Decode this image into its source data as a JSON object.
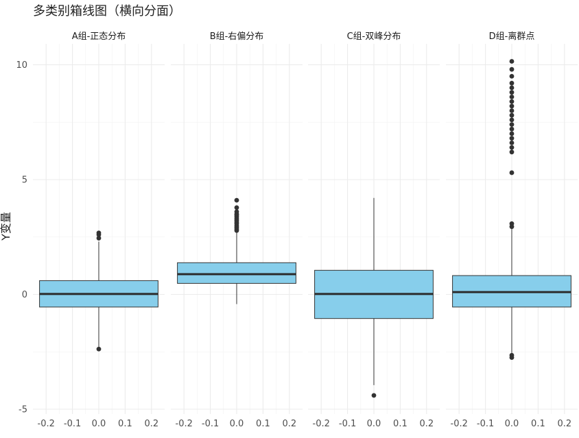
{
  "chart_data": {
    "type": "boxplot",
    "title": "多类别箱线图（横向分面）",
    "xlabel": "",
    "ylabel": "Y变量",
    "ylim": [
      -5.0,
      10.5
    ],
    "y_ticks": [
      10,
      5,
      0,
      -5
    ],
    "xlim": [
      -0.25,
      0.25
    ],
    "x_ticks": [
      -0.2,
      -0.1,
      0.0,
      0.1,
      0.2
    ],
    "x_tick_labels": [
      "-0.2",
      "-0.1",
      "0.0",
      "0.1",
      "0.2"
    ],
    "box_fill": "#87ceeb",
    "box_edge": "#333333",
    "grid": true,
    "facets": [
      {
        "label": "A组-正态分布",
        "q1": -0.55,
        "median": 0.02,
        "q3": 0.6,
        "whisker_low": -2.35,
        "whisker_high": 2.3,
        "outliers": [
          2.45,
          2.6,
          2.68,
          -2.38
        ]
      },
      {
        "label": "B组-右偏分布",
        "q1": 0.48,
        "median": 0.88,
        "q3": 1.38,
        "whisker_low": -0.42,
        "whisker_high": 2.7,
        "outliers": [
          2.78,
          2.85,
          2.92,
          3.0,
          3.08,
          3.15,
          3.22,
          3.3,
          3.38,
          3.45,
          3.5,
          3.6,
          3.78,
          4.1
        ]
      },
      {
        "label": "C组-双峰分布",
        "q1": -1.05,
        "median": 0.02,
        "q3": 1.05,
        "whisker_low": -3.95,
        "whisker_high": 4.2,
        "outliers": [
          -4.4
        ]
      },
      {
        "label": "D组-离群点",
        "q1": -0.55,
        "median": 0.1,
        "q3": 0.82,
        "whisker_low": -2.55,
        "whisker_high": 2.85,
        "outliers": [
          -2.65,
          -2.75,
          2.95,
          3.08,
          5.3,
          6.2,
          6.4,
          6.6,
          6.8,
          7.0,
          7.2,
          7.4,
          7.6,
          7.8,
          8.0,
          8.2,
          8.4,
          8.6,
          8.8,
          9.0,
          9.2,
          9.5,
          9.8,
          10.15
        ]
      }
    ]
  }
}
